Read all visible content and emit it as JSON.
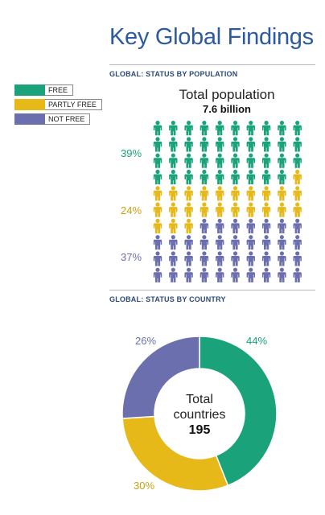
{
  "header": {
    "title": "Key Global Findings"
  },
  "legend": [
    {
      "label": "FREE",
      "color": "#1aa37a"
    },
    {
      "label": "PARTLY FREE",
      "color": "#e6b818"
    },
    {
      "label": "NOT FREE",
      "color": "#6b6fad"
    }
  ],
  "population": {
    "section_label": "GLOBAL: STATUS BY POPULATION",
    "title": "Total population",
    "total": "7.6 billion",
    "pct_labels": [
      "39%",
      "24%",
      "37%"
    ]
  },
  "country": {
    "section_label": "GLOBAL: STATUS BY COUNTRY",
    "center_text_1": "Total",
    "center_text_2": "countries",
    "center_number": "195",
    "pct_labels": [
      "44%",
      "30%",
      "26%"
    ]
  },
  "chart_data": [
    {
      "type": "pictogram",
      "title": "Total population",
      "subtitle": "7.6 billion",
      "categories": [
        "FREE",
        "PARTLY FREE",
        "NOT FREE"
      ],
      "values": [
        39,
        24,
        37
      ],
      "icon_count": [
        39,
        24,
        37
      ],
      "colors": [
        "#1aa37a",
        "#e6b818",
        "#6b6fad"
      ]
    },
    {
      "type": "pie",
      "categories": [
        "FREE",
        "PARTLY FREE",
        "NOT FREE"
      ],
      "values": [
        44,
        30,
        26
      ],
      "colors": [
        "#1aa37a",
        "#e6b818",
        "#6b6fad"
      ],
      "center_label": "Total countries",
      "center_value": "195"
    }
  ]
}
